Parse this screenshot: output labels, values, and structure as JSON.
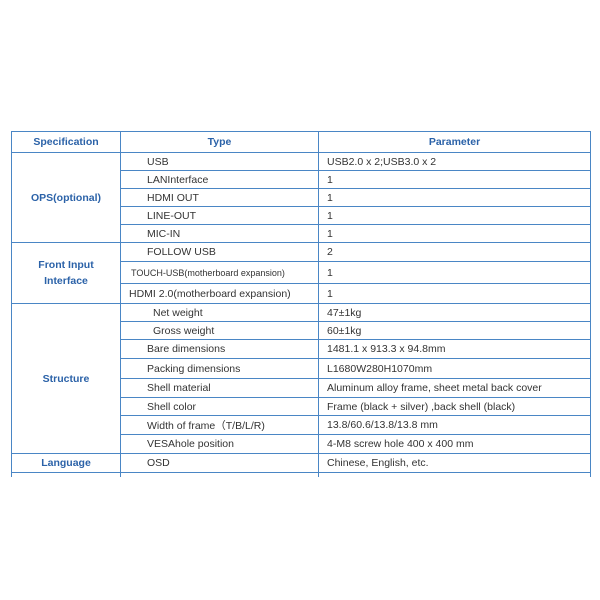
{
  "headers": [
    "Specification",
    "Type",
    "Parameter"
  ],
  "groups": [
    {
      "spec": "OPS(optional)",
      "rows": [
        {
          "type": "USB",
          "param": "USB2.0 x 2;USB3.0 x 2"
        },
        {
          "type": "LANInterface",
          "param": "1"
        },
        {
          "type": "HDMI OUT",
          "param": "1"
        },
        {
          "type": "LINE-OUT",
          "param": "1"
        },
        {
          "type": "MIC-IN",
          "param": "1"
        }
      ]
    },
    {
      "spec": "Front Input Interface",
      "rows": [
        {
          "type": "FOLLOW USB",
          "param": "2"
        },
        {
          "type": "TOUCH-USB(motherboard expansion)",
          "param": "1"
        },
        {
          "type": "HDMI 2.0(motherboard expansion)",
          "param": "1"
        }
      ]
    },
    {
      "spec": "Structure",
      "rows": [
        {
          "type": "Net weight",
          "param": "47±1kg"
        },
        {
          "type": "Gross weight",
          "param": "60±1kg"
        },
        {
          "type": "Bare dimensions",
          "param": "1481.1 x 913.3 x 94.8mm"
        },
        {
          "type": "Packing dimensions",
          "param": "L1680W280H1070mm"
        },
        {
          "type": "Shell material",
          "param": "Aluminum alloy frame, sheet metal back cover"
        },
        {
          "type": "Shell color",
          "param": "Frame (black + silver) ,back shell (black)"
        },
        {
          "type": "Width of frame（T/B/L/R)",
          "param": "13.8/60.6/13.8/13.8 mm"
        },
        {
          "type": "VESAhole position",
          "param": "4-M8 screw hole 400 x 400 mm"
        }
      ]
    },
    {
      "spec": "Language",
      "rows": [
        {
          "type": "OSD",
          "param": "Chinese, English, etc."
        }
      ]
    }
  ],
  "colors": {
    "border": "#4a86c5",
    "heading_text": "#2b62a8",
    "body_text": "#333333"
  }
}
